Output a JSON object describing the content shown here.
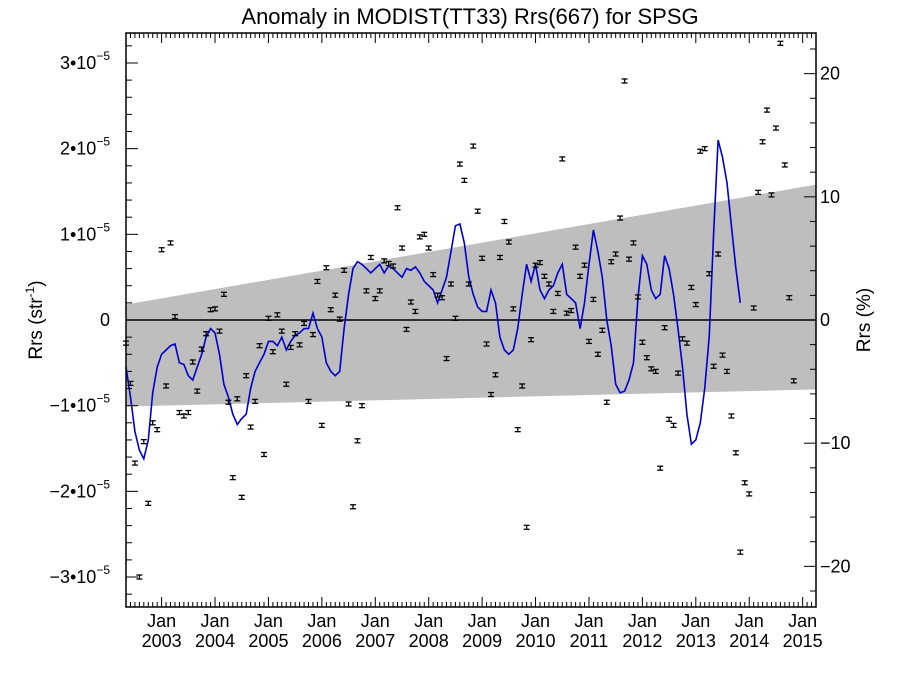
{
  "chart_data": {
    "type": "scatter",
    "title": "Anomaly in MODIST(TT33) Rrs(667) for SPSG",
    "ylabel": "Rrs (str",
    "ylabel_sup": "-1",
    "ylabel_close": ")",
    "y2label": "Rrs (%)",
    "xlim": [
      "2002-05",
      "2015-04"
    ],
    "ylim": [
      -3.35e-05,
      3.35e-05
    ],
    "y2lim": [
      -23.3,
      23.3
    ],
    "grid": false,
    "legend": "none",
    "yticks": [
      {
        "value": 3e-05,
        "mant": "3",
        "exp": "−5"
      },
      {
        "value": 2e-05,
        "mant": "2",
        "exp": "−5"
      },
      {
        "value": 1e-05,
        "mant": "1",
        "exp": "−5"
      },
      {
        "value": 0,
        "text": "0"
      },
      {
        "value": -1e-05,
        "mant": "−1",
        "exp": "−5"
      },
      {
        "value": -2e-05,
        "mant": "−2",
        "exp": "−5"
      },
      {
        "value": -3e-05,
        "mant": "−3",
        "exp": "−5"
      }
    ],
    "y2ticks": [
      {
        "value": 20,
        "text": "20"
      },
      {
        "value": 10,
        "text": "10"
      },
      {
        "value": 0,
        "text": "0"
      },
      {
        "value": -10,
        "text": "−10"
      },
      {
        "value": -20,
        "text": "−20"
      }
    ],
    "xticks": [
      {
        "date": "2003-01",
        "line1": "Jan",
        "line2": "2003"
      },
      {
        "date": "2004-01",
        "line1": "Jan",
        "line2": "2004"
      },
      {
        "date": "2005-01",
        "line1": "Jan",
        "line2": "2005"
      },
      {
        "date": "2006-01",
        "line1": "Jan",
        "line2": "2006"
      },
      {
        "date": "2007-01",
        "line1": "Jan",
        "line2": "2007"
      },
      {
        "date": "2008-01",
        "line1": "Jan",
        "line2": "2008"
      },
      {
        "date": "2009-01",
        "line1": "Jan",
        "line2": "2009"
      },
      {
        "date": "2010-01",
        "line1": "Jan",
        "line2": "2010"
      },
      {
        "date": "2011-01",
        "line1": "Jan",
        "line2": "2011"
      },
      {
        "date": "2012-01",
        "line1": "Jan",
        "line2": "2012"
      },
      {
        "date": "2013-01",
        "line1": "Jan",
        "line2": "2013"
      },
      {
        "date": "2014-01",
        "line1": "Jan",
        "line2": "2014"
      },
      {
        "date": "2015-01",
        "line1": "Jan",
        "line2": "2015"
      }
    ],
    "band": {
      "start": {
        "date": "2002-05",
        "upper": 1.8e-06,
        "lower": -1.01e-05
      },
      "end": {
        "date": "2015-04",
        "upper": 1.58e-05,
        "lower": -8.1e-06
      },
      "color": "#bebebe"
    },
    "zero_line_color": "#000000",
    "points_color": "#000000",
    "smooth_color": "#0000cc",
    "points": [
      [
        "2002-05",
        -2.7e-06
      ],
      [
        "2002-06",
        -7.4e-06
      ],
      [
        "2002-07",
        -1.67e-05
      ],
      [
        "2002-08",
        -3e-05
      ],
      [
        "2002-09",
        -1.42e-05
      ],
      [
        "2002-10",
        -2.14e-05
      ],
      [
        "2002-11",
        -1.2e-05
      ],
      [
        "2002-12",
        -1.28e-05
      ],
      [
        "2003-01",
        8.2e-06
      ],
      [
        "2003-02",
        -7.7e-06
      ],
      [
        "2003-03",
        9e-06
      ],
      [
        "2003-04",
        4e-07
      ],
      [
        "2003-05",
        -1.08e-05
      ],
      [
        "2003-06",
        -1.12e-05
      ],
      [
        "2003-07",
        -1.08e-05
      ],
      [
        "2003-08",
        -4.9e-06
      ],
      [
        "2003-09",
        -8.3e-06
      ],
      [
        "2003-10",
        -3.4e-06
      ],
      [
        "2003-11",
        -1.6e-06
      ],
      [
        "2003-12",
        1.2e-06
      ],
      [
        "2004-01",
        1.3e-06
      ],
      [
        "2004-02",
        -1.3e-06
      ],
      [
        "2004-03",
        3e-06
      ],
      [
        "2004-04",
        -9.6e-06
      ],
      [
        "2004-05",
        -1.84e-05
      ],
      [
        "2004-06",
        -9.2e-06
      ],
      [
        "2004-07",
        -2.07e-05
      ],
      [
        "2004-08",
        -6.5e-06
      ],
      [
        "2004-09",
        -1.25e-05
      ],
      [
        "2004-10",
        -9.5e-06
      ],
      [
        "2004-11",
        -3e-06
      ],
      [
        "2004-12",
        -1.57e-05
      ],
      [
        "2005-01",
        2e-07
      ],
      [
        "2005-02",
        -3.7e-06
      ],
      [
        "2005-03",
        6e-07
      ],
      [
        "2005-04",
        -1.3e-06
      ],
      [
        "2005-05",
        -7.5e-06
      ],
      [
        "2005-06",
        -3.2e-06
      ],
      [
        "2005-07",
        -1.6e-06
      ],
      [
        "2005-08",
        -2.9e-06
      ],
      [
        "2005-09",
        -4e-07
      ],
      [
        "2005-10",
        -9.5e-06
      ],
      [
        "2005-11",
        -1.7e-06
      ],
      [
        "2005-12",
        4.5e-06
      ],
      [
        "2006-01",
        -1.23e-05
      ],
      [
        "2006-02",
        6.1e-06
      ],
      [
        "2006-03",
        1.2e-06
      ],
      [
        "2006-04",
        2.9e-06
      ],
      [
        "2006-05",
        1e-07
      ],
      [
        "2006-06",
        5.8e-06
      ],
      [
        "2006-07",
        -9.8e-06
      ],
      [
        "2006-08",
        -2.18e-05
      ],
      [
        "2006-09",
        -1.41e-05
      ],
      [
        "2006-10",
        -1e-05
      ],
      [
        "2006-11",
        3.4e-06
      ],
      [
        "2006-12",
        7.3e-06
      ],
      [
        "2007-01",
        2.5e-06
      ],
      [
        "2007-02",
        3.4e-06
      ],
      [
        "2007-03",
        6.9e-06
      ],
      [
        "2007-04",
        6.6e-06
      ],
      [
        "2007-05",
        6.3e-06
      ],
      [
        "2007-06",
        1.31e-05
      ],
      [
        "2007-07",
        8.4e-06
      ],
      [
        "2007-08",
        -1.1e-06
      ],
      [
        "2007-09",
        2.1e-06
      ],
      [
        "2007-10",
        1e-06
      ],
      [
        "2007-11",
        9.7e-06
      ],
      [
        "2007-12",
        1e-05
      ],
      [
        "2008-01",
        8.4e-06
      ],
      [
        "2008-02",
        5.3e-06
      ],
      [
        "2008-03",
        2.9e-06
      ],
      [
        "2008-04",
        2.6e-06
      ],
      [
        "2008-05",
        -4.5e-06
      ],
      [
        "2008-06",
        4.2e-06
      ],
      [
        "2008-07",
        2e-07
      ],
      [
        "2008-08",
        1.82e-05
      ],
      [
        "2008-09",
        1.63e-05
      ],
      [
        "2008-10",
        4.2e-06
      ],
      [
        "2008-11",
        2.03e-05
      ],
      [
        "2008-12",
        1.27e-05
      ],
      [
        "2009-01",
        7.2e-06
      ],
      [
        "2009-02",
        -2.8e-06
      ],
      [
        "2009-03",
        -8.7e-06
      ],
      [
        "2009-04",
        -6.4e-06
      ],
      [
        "2009-05",
        7.3e-06
      ],
      [
        "2009-06",
        1.15e-05
      ],
      [
        "2009-07",
        9.1e-06
      ],
      [
        "2009-08",
        1.3e-06
      ],
      [
        "2009-09",
        -1.28e-05
      ],
      [
        "2009-10",
        -7.7e-06
      ],
      [
        "2009-11",
        -2.42e-05
      ],
      [
        "2009-12",
        -2.3e-06
      ],
      [
        "2010-01",
        6.4e-06
      ],
      [
        "2010-02",
        6.7e-06
      ],
      [
        "2010-03",
        5.1e-06
      ],
      [
        "2010-04",
        4.2e-06
      ],
      [
        "2010-05",
        1e-06
      ],
      [
        "2010-06",
        3.1e-06
      ],
      [
        "2010-07",
        1.88e-05
      ],
      [
        "2010-08",
        8e-07
      ],
      [
        "2010-09",
        1.1e-06
      ],
      [
        "2010-10",
        8.5e-06
      ],
      [
        "2010-11",
        5.1e-06
      ],
      [
        "2010-12",
        6.4e-06
      ],
      [
        "2011-01",
        -2.5e-06
      ],
      [
        "2011-02",
        2.4e-06
      ],
      [
        "2011-03",
        -4e-06
      ],
      [
        "2011-04",
        -1.2e-06
      ],
      [
        "2011-05",
        -9.6e-06
      ],
      [
        "2011-06",
        6.8e-06
      ],
      [
        "2011-07",
        7.7e-06
      ],
      [
        "2011-08",
        1.19e-05
      ],
      [
        "2011-09",
        2.79e-05
      ],
      [
        "2011-10",
        7.1e-06
      ],
      [
        "2011-11",
        9e-06
      ],
      [
        "2011-12",
        2.7e-06
      ],
      [
        "2012-01",
        -2.6e-06
      ],
      [
        "2012-02",
        -4.4e-06
      ],
      [
        "2012-03",
        -5.7e-06
      ],
      [
        "2012-04",
        -6e-06
      ],
      [
        "2012-05",
        -1.73e-05
      ],
      [
        "2012-06",
        -9e-07
      ],
      [
        "2012-07",
        -1.16e-05
      ],
      [
        "2012-08",
        -1.23e-05
      ],
      [
        "2012-09",
        -6.2e-06
      ],
      [
        "2012-10",
        -2.2e-06
      ],
      [
        "2012-11",
        -2.7e-06
      ],
      [
        "2012-12",
        3.8e-06
      ],
      [
        "2013-01",
        1.8e-06
      ],
      [
        "2013-02",
        1.97e-05
      ],
      [
        "2013-03",
        2e-05
      ],
      [
        "2013-04",
        5.4e-06
      ],
      [
        "2013-05",
        -5.4e-06
      ],
      [
        "2013-06",
        7.7e-06
      ],
      [
        "2013-07",
        -4.1e-06
      ],
      [
        "2013-08",
        -6e-06
      ],
      [
        "2013-09",
        -1.12e-05
      ],
      [
        "2013-10",
        -1.55e-05
      ],
      [
        "2013-11",
        -2.71e-05
      ],
      [
        "2013-12",
        -1.9e-05
      ],
      [
        "2014-01",
        -2.03e-05
      ],
      [
        "2014-02",
        1.4e-06
      ],
      [
        "2014-03",
        1.49e-05
      ],
      [
        "2014-04",
        2.08e-05
      ],
      [
        "2014-05",
        2.45e-05
      ],
      [
        "2014-06",
        1.46e-05
      ],
      [
        "2014-07",
        2.24e-05
      ],
      [
        "2014-08",
        3.23e-05
      ],
      [
        "2014-09",
        1.81e-05
      ],
      [
        "2014-10",
        2.6e-06
      ],
      [
        "2014-11",
        -7.1e-06
      ]
    ],
    "smooth": [
      [
        "2002-05",
        -5.5e-06
      ],
      [
        "2002-06",
        -9e-06
      ],
      [
        "2002-07",
        -1.3e-05
      ],
      [
        "2002-08",
        -1.52e-05
      ],
      [
        "2002-09",
        -1.62e-05
      ],
      [
        "2002-10",
        -1.4e-05
      ],
      [
        "2002-11",
        -8.5e-06
      ],
      [
        "2002-12",
        -5.5e-06
      ],
      [
        "2003-01",
        -4e-06
      ],
      [
        "2003-02",
        -3.5e-06
      ],
      [
        "2003-03",
        -3e-06
      ],
      [
        "2003-04",
        -2.8e-06
      ],
      [
        "2003-05",
        -5e-06
      ],
      [
        "2003-06",
        -5.2e-06
      ],
      [
        "2003-07",
        -6.5e-06
      ],
      [
        "2003-08",
        -7e-06
      ],
      [
        "2003-09",
        -5.5e-06
      ],
      [
        "2003-10",
        -4e-06
      ],
      [
        "2003-11",
        -2e-06
      ],
      [
        "2003-12",
        -1e-06
      ],
      [
        "2004-01",
        -1.5e-06
      ],
      [
        "2004-02",
        -4e-06
      ],
      [
        "2004-03",
        -7.5e-06
      ],
      [
        "2004-04",
        -9e-06
      ],
      [
        "2004-05",
        -1.1e-05
      ],
      [
        "2004-06",
        -1.22e-05
      ],
      [
        "2004-07",
        -1.15e-05
      ],
      [
        "2004-08",
        -1.1e-05
      ],
      [
        "2004-09",
        -8e-06
      ],
      [
        "2004-10",
        -6e-06
      ],
      [
        "2004-11",
        -5e-06
      ],
      [
        "2004-12",
        -4e-06
      ],
      [
        "2005-01",
        -2.5e-06
      ],
      [
        "2005-02",
        -2.5e-06
      ],
      [
        "2005-03",
        -3e-06
      ],
      [
        "2005-04",
        -2e-06
      ],
      [
        "2005-05",
        -3.5e-06
      ],
      [
        "2005-06",
        -2.5e-06
      ],
      [
        "2005-07",
        -1.8e-06
      ],
      [
        "2005-08",
        -1.5e-06
      ],
      [
        "2005-09",
        -1e-06
      ],
      [
        "2005-10",
        -1e-06
      ],
      [
        "2005-11",
        8e-07
      ],
      [
        "2005-12",
        -1e-06
      ],
      [
        "2006-01",
        -2e-06
      ],
      [
        "2006-02",
        -5e-06
      ],
      [
        "2006-03",
        -6e-06
      ],
      [
        "2006-04",
        -6.5e-06
      ],
      [
        "2006-05",
        -6e-06
      ],
      [
        "2006-06",
        -1e-06
      ],
      [
        "2006-07",
        3e-06
      ],
      [
        "2006-08",
        6e-06
      ],
      [
        "2006-09",
        6.8e-06
      ],
      [
        "2006-10",
        6.5e-06
      ],
      [
        "2006-11",
        6e-06
      ],
      [
        "2006-12",
        5.5e-06
      ],
      [
        "2007-01",
        6e-06
      ],
      [
        "2007-02",
        6.5e-06
      ],
      [
        "2007-03",
        5.5e-06
      ],
      [
        "2007-04",
        6.3e-06
      ],
      [
        "2007-05",
        6e-06
      ],
      [
        "2007-06",
        5.5e-06
      ],
      [
        "2007-07",
        5e-06
      ],
      [
        "2007-08",
        6e-06
      ],
      [
        "2007-09",
        5.8e-06
      ],
      [
        "2007-10",
        6.2e-06
      ],
      [
        "2007-11",
        5.5e-06
      ],
      [
        "2007-12",
        4.5e-06
      ],
      [
        "2008-01",
        4e-06
      ],
      [
        "2008-02",
        3.5e-06
      ],
      [
        "2008-03",
        2e-06
      ],
      [
        "2008-04",
        3.5e-06
      ],
      [
        "2008-05",
        5e-06
      ],
      [
        "2008-06",
        8e-06
      ],
      [
        "2008-07",
        1.1e-05
      ],
      [
        "2008-08",
        1.12e-05
      ],
      [
        "2008-09",
        9e-06
      ],
      [
        "2008-10",
        5e-06
      ],
      [
        "2008-11",
        3e-06
      ],
      [
        "2008-12",
        1.5e-06
      ],
      [
        "2009-01",
        1e-06
      ],
      [
        "2009-02",
        1e-06
      ],
      [
        "2009-03",
        3.5e-06
      ],
      [
        "2009-04",
        2e-06
      ],
      [
        "2009-05",
        -2e-06
      ],
      [
        "2009-06",
        -3.5e-06
      ],
      [
        "2009-07",
        -4e-06
      ],
      [
        "2009-08",
        -3.5e-06
      ],
      [
        "2009-09",
        -1e-06
      ],
      [
        "2009-10",
        3e-06
      ],
      [
        "2009-11",
        6.5e-06
      ],
      [
        "2009-12",
        4.5e-06
      ],
      [
        "2010-01",
        6.5e-06
      ],
      [
        "2010-02",
        3.5e-06
      ],
      [
        "2010-03",
        2.5e-06
      ],
      [
        "2010-04",
        3.5e-06
      ],
      [
        "2010-05",
        4e-06
      ],
      [
        "2010-06",
        5.5e-06
      ],
      [
        "2010-07",
        6.5e-06
      ],
      [
        "2010-08",
        3e-06
      ],
      [
        "2010-09",
        2.5e-06
      ],
      [
        "2010-10",
        2e-06
      ],
      [
        "2010-11",
        -1e-06
      ],
      [
        "2010-12",
        2e-06
      ],
      [
        "2011-01",
        6.5e-06
      ],
      [
        "2011-02",
        1.05e-05
      ],
      [
        "2011-03",
        8e-06
      ],
      [
        "2011-04",
        5e-06
      ],
      [
        "2011-05",
        0
      ],
      [
        "2011-06",
        -3e-06
      ],
      [
        "2011-07",
        -7.5e-06
      ],
      [
        "2011-08",
        -8.5e-06
      ],
      [
        "2011-09",
        -8.3e-06
      ],
      [
        "2011-10",
        -7e-06
      ],
      [
        "2011-11",
        -5e-06
      ],
      [
        "2011-12",
        2.5e-06
      ],
      [
        "2012-01",
        7.5e-06
      ],
      [
        "2012-02",
        6.5e-06
      ],
      [
        "2012-03",
        3.5e-06
      ],
      [
        "2012-04",
        2.5e-06
      ],
      [
        "2012-05",
        3e-06
      ],
      [
        "2012-06",
        7.5e-06
      ],
      [
        "2012-07",
        6e-06
      ],
      [
        "2012-08",
        3e-06
      ],
      [
        "2012-09",
        -1e-06
      ],
      [
        "2012-10",
        -5.5e-06
      ],
      [
        "2012-11",
        -1.1e-05
      ],
      [
        "2012-12",
        -1.45e-05
      ],
      [
        "2013-01",
        -1.4e-05
      ],
      [
        "2013-02",
        -1.2e-05
      ],
      [
        "2013-03",
        -8e-06
      ],
      [
        "2013-04",
        -2e-06
      ],
      [
        "2013-05",
        1e-05
      ],
      [
        "2013-06",
        2.1e-05
      ],
      [
        "2013-07",
        1.9e-05
      ],
      [
        "2013-08",
        1.6e-05
      ],
      [
        "2013-09",
        1.1e-05
      ],
      [
        "2013-10",
        6e-06
      ],
      [
        "2013-11",
        2e-06
      ]
    ]
  }
}
